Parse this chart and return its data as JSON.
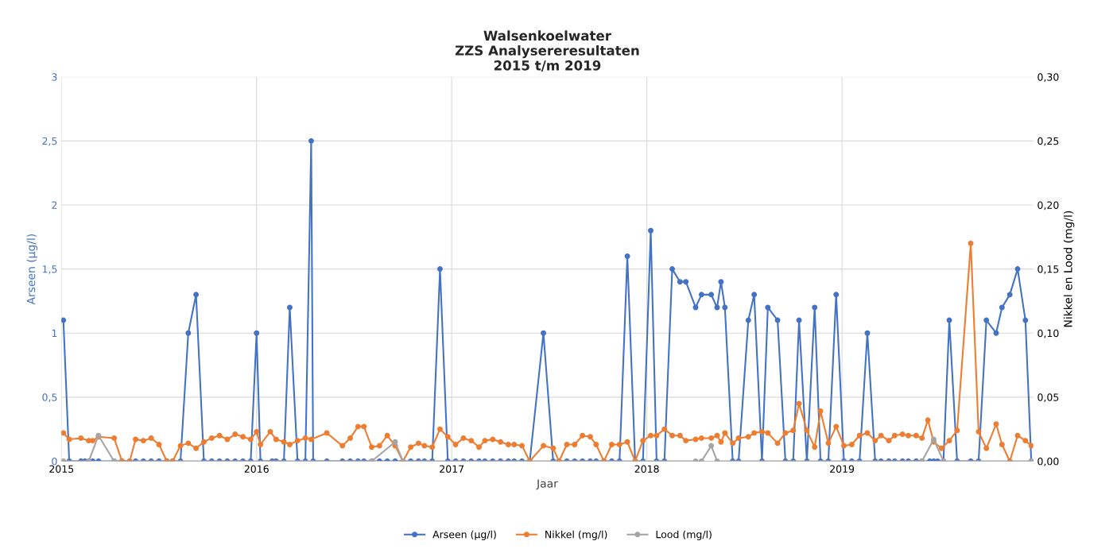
{
  "chart_data": {
    "type": "line",
    "title": "Walsenkoelwater\nZZS Analysereresultaten\n2015 t/m 2019",
    "xlabel": "Jaar",
    "ylabel": "Arseen (µg/l)",
    "y2label": "Nikkel en Lood (mg/l)",
    "xlim": [
      2015,
      2019.98
    ],
    "xticks": [
      2015,
      2016,
      2017,
      2018,
      2019
    ],
    "ylim": [
      0,
      3
    ],
    "yticks": [
      0,
      {
        "value": 0.5,
        "label": "0,5"
      },
      1,
      {
        "value": 1.5,
        "label": "1,5"
      },
      2,
      {
        "value": 2.5,
        "label": "2,5"
      },
      3
    ],
    "y2lim": [
      0,
      0.3
    ],
    "y2ticks": [
      {
        "value": 0,
        "label": "0,00"
      },
      {
        "value": 0.05,
        "label": "0,05"
      },
      {
        "value": 0.1,
        "label": "0,10"
      },
      {
        "value": 0.15,
        "label": "0,15"
      },
      {
        "value": 0.2,
        "label": "0,20"
      },
      {
        "value": 0.25,
        "label": "0,25"
      },
      {
        "value": 0.3,
        "label": "0,30"
      }
    ],
    "grid": true,
    "legend": "bottom",
    "marker": "circle",
    "line_style": "solid",
    "series": [
      {
        "name": "Arseen (µg/l)",
        "color": "#4472c4",
        "axis": "y",
        "x": [
          2015.01,
          2015.04,
          2015.1,
          2015.12,
          2015.14,
          2015.16,
          2015.19,
          2015.27,
          2015.31,
          2015.35,
          2015.38,
          2015.42,
          2015.46,
          2015.5,
          2015.54,
          2015.57,
          2015.61,
          2015.65,
          2015.69,
          2015.73,
          2015.77,
          2015.81,
          2015.85,
          2015.89,
          2015.93,
          2015.97,
          2016.0,
          2016.02,
          2016.08,
          2016.1,
          2016.14,
          2016.17,
          2016.21,
          2016.25,
          2016.28,
          2016.29,
          2016.36,
          2016.44,
          2016.48,
          2016.52,
          2016.55,
          2016.59,
          2016.63,
          2016.67,
          2016.71,
          2016.75,
          2016.79,
          2016.83,
          2016.86,
          2016.9,
          2016.94,
          2016.98,
          2017.02,
          2017.06,
          2017.1,
          2017.14,
          2017.17,
          2017.21,
          2017.25,
          2017.29,
          2017.32,
          2017.36,
          2017.4,
          2017.47,
          2017.52,
          2017.55,
          2017.59,
          2017.63,
          2017.67,
          2017.71,
          2017.74,
          2017.78,
          2017.82,
          2017.86,
          2017.9,
          2017.94,
          2017.98,
          2018.02,
          2018.05,
          2018.09,
          2018.13,
          2018.17,
          2018.2,
          2018.25,
          2018.28,
          2018.33,
          2018.36,
          2018.38,
          2018.4,
          2018.44,
          2018.47,
          2018.52,
          2018.55,
          2018.59,
          2018.62,
          2018.67,
          2018.71,
          2018.75,
          2018.78,
          2018.82,
          2018.86,
          2018.89,
          2018.93,
          2018.97,
          2019.01,
          2019.05,
          2019.09,
          2019.13,
          2019.17,
          2019.2,
          2019.24,
          2019.27,
          2019.31,
          2019.34,
          2019.38,
          2019.41,
          2019.45,
          2019.47,
          2019.49,
          2019.52,
          2019.55,
          2019.59,
          2019.66,
          2019.7,
          2019.74,
          2019.79,
          2019.82,
          2019.86,
          2019.9,
          2019.94,
          2019.97
        ],
        "values": [
          1.1,
          0,
          0,
          0,
          0,
          0,
          0,
          0,
          0,
          0,
          0,
          0,
          0,
          0,
          0,
          0,
          0,
          1.0,
          1.3,
          0,
          0,
          0,
          0,
          0,
          0,
          0,
          1.0,
          0,
          0,
          0,
          0,
          1.2,
          0,
          0,
          2.5,
          0,
          0,
          0,
          0,
          0,
          0,
          0,
          0,
          0,
          0,
          0,
          0,
          0,
          0,
          0,
          1.5,
          0,
          0,
          0,
          0,
          0,
          0,
          0,
          0,
          0,
          0,
          0,
          0,
          1.0,
          0,
          0,
          0,
          0,
          0,
          0,
          0,
          0,
          0,
          0,
          1.6,
          0,
          0,
          1.8,
          0,
          0,
          1.5,
          1.4,
          1.4,
          1.2,
          1.3,
          1.3,
          1.2,
          1.4,
          1.2,
          0,
          0,
          1.1,
          1.3,
          0,
          1.2,
          1.1,
          0,
          0,
          1.1,
          0,
          1.2,
          0,
          0,
          1.3,
          0,
          0,
          0,
          1.0,
          0,
          0,
          0,
          0,
          0,
          0,
          0,
          0,
          0,
          0,
          0,
          0,
          1.1,
          0,
          0,
          0,
          1.1,
          1.0,
          1.2,
          1.3,
          1.5,
          1.1,
          0
        ]
      },
      {
        "name": "Nikkel (mg/l)",
        "color": "#ed7d31",
        "axis": "y2",
        "x": [
          2015.01,
          2015.04,
          2015.1,
          2015.14,
          2015.16,
          2015.19,
          2015.27,
          2015.31,
          2015.35,
          2015.38,
          2015.42,
          2015.46,
          2015.5,
          2015.54,
          2015.57,
          2015.61,
          2015.65,
          2015.69,
          2015.73,
          2015.77,
          2015.81,
          2015.85,
          2015.89,
          2015.93,
          2015.97,
          2016.0,
          2016.02,
          2016.07,
          2016.1,
          2016.14,
          2016.17,
          2016.21,
          2016.25,
          2016.28,
          2016.36,
          2016.44,
          2016.48,
          2016.52,
          2016.55,
          2016.59,
          2016.63,
          2016.67,
          2016.71,
          2016.75,
          2016.79,
          2016.83,
          2016.86,
          2016.9,
          2016.94,
          2016.98,
          2017.02,
          2017.06,
          2017.1,
          2017.14,
          2017.17,
          2017.21,
          2017.25,
          2017.29,
          2017.32,
          2017.36,
          2017.4,
          2017.47,
          2017.52,
          2017.55,
          2017.59,
          2017.63,
          2017.67,
          2017.71,
          2017.74,
          2017.78,
          2017.82,
          2017.86,
          2017.9,
          2017.94,
          2017.98,
          2018.02,
          2018.05,
          2018.09,
          2018.13,
          2018.17,
          2018.2,
          2018.25,
          2018.28,
          2018.33,
          2018.36,
          2018.38,
          2018.4,
          2018.44,
          2018.47,
          2018.52,
          2018.55,
          2018.59,
          2018.62,
          2018.67,
          2018.71,
          2018.75,
          2018.78,
          2018.82,
          2018.86,
          2018.89,
          2018.93,
          2018.97,
          2019.01,
          2019.05,
          2019.09,
          2019.13,
          2019.17,
          2019.2,
          2019.24,
          2019.27,
          2019.31,
          2019.34,
          2019.38,
          2019.41,
          2019.44,
          2019.47,
          2019.51,
          2019.55,
          2019.59,
          2019.66,
          2019.7,
          2019.74,
          2019.79,
          2019.82,
          2019.86,
          2019.9,
          2019.94,
          2019.97
        ],
        "values": [
          0.022,
          0.017,
          0.018,
          0.016,
          0.016,
          0.019,
          0.018,
          0,
          0,
          0.017,
          0.016,
          0.018,
          0.013,
          0,
          0,
          0.012,
          0.014,
          0.01,
          0.015,
          0.018,
          0.02,
          0.017,
          0.021,
          0.019,
          0.017,
          0.023,
          0.013,
          0.023,
          0.017,
          0.015,
          0.013,
          0.016,
          0.018,
          0.017,
          0.022,
          0.012,
          0.018,
          0.027,
          0.027,
          0.011,
          0.012,
          0.02,
          0.012,
          0,
          0.011,
          0.014,
          0.012,
          0.011,
          0.025,
          0.019,
          0.013,
          0.018,
          0.016,
          0.011,
          0.016,
          0.017,
          0.015,
          0.013,
          0.013,
          0.012,
          0,
          0.012,
          0.01,
          0,
          0.013,
          0.013,
          0.02,
          0.019,
          0.013,
          0,
          0.013,
          0.013,
          0.015,
          0,
          0.016,
          0.02,
          0.02,
          0.025,
          0.02,
          0.02,
          0.016,
          0.017,
          0.018,
          0.018,
          0.02,
          0.015,
          0.022,
          0.014,
          0.018,
          0.019,
          0.022,
          0.023,
          0.022,
          0.014,
          0.022,
          0.024,
          0.045,
          0.024,
          0.011,
          0.039,
          0.014,
          0.027,
          0.012,
          0.013,
          0.02,
          0.022,
          0.016,
          0.02,
          0.016,
          0.02,
          0.021,
          0.02,
          0.02,
          0.018,
          0.032,
          0.015,
          0.01,
          0.016,
          0.024,
          0.17,
          0.023,
          0.01,
          0.029,
          0.013,
          0,
          0.02,
          0.016,
          0.012
        ]
      },
      {
        "name": "Lood (mg/l)",
        "color": "#a5a5a5",
        "axis": "y2",
        "x": [
          2015.01,
          2015.14,
          2015.19,
          2015.27,
          2016.59,
          2016.71,
          2016.75,
          2018.25,
          2018.28,
          2018.33,
          2018.36,
          2019.41,
          2019.47,
          2019.52,
          2019.97
        ],
        "values": [
          0,
          0,
          0.02,
          0,
          0,
          0.015,
          0,
          0,
          0,
          0.012,
          0,
          0,
          0.017,
          0,
          0
        ]
      }
    ]
  }
}
